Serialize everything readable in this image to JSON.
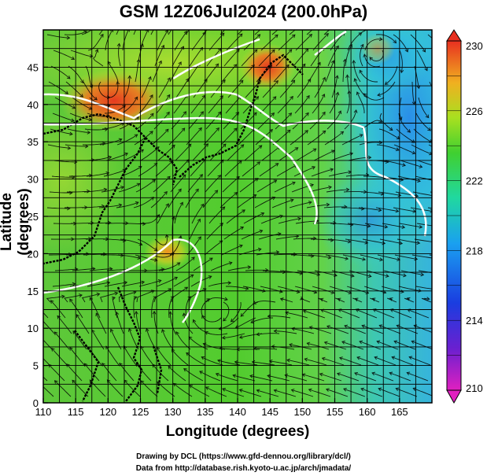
{
  "title": "GSM 12Z06Jul2024 (200.0hPa)",
  "xlabel": "Longitude (degrees)",
  "ylabel": "Latitude  (degrees)",
  "credits": [
    "Drawing by DCL (https://www.gfd-dennou.org/library/dcl/)",
    "Data from http://database.rish.kyoto-u.ac.jp/arch/jmadata/"
  ],
  "chart_data": {
    "type": "heatmap",
    "title": "GSM 12Z06Jul2024 (200.0hPa)",
    "xlabel": "Longitude (degrees)",
    "ylabel": "Latitude  (degrees)",
    "xlim": [
      110,
      170
    ],
    "ylim": [
      0,
      50
    ],
    "x_ticks": [
      "110",
      "115",
      "120",
      "125",
      "130",
      "135",
      "140",
      "145",
      "150",
      "155",
      "160",
      "165"
    ],
    "y_ticks": [
      "0",
      "5",
      "10",
      "15",
      "20",
      "25",
      "30",
      "35",
      "40",
      "45"
    ],
    "colorbar": {
      "min": 210,
      "max": 230,
      "labels": [
        "230",
        "226",
        "222",
        "218",
        "214",
        "210"
      ]
    },
    "hotspots": [
      {
        "lon": 123,
        "lat": 42.5,
        "value": 228
      },
      {
        "lon": 144,
        "lat": 46,
        "value": 228
      },
      {
        "lon": 130,
        "lat": 22,
        "value": 226
      }
    ],
    "coldspots": [
      {
        "lon": 163,
        "lat": 40,
        "value": 217
      },
      {
        "lon": 158,
        "lat": 28,
        "value": 218
      }
    ]
  }
}
